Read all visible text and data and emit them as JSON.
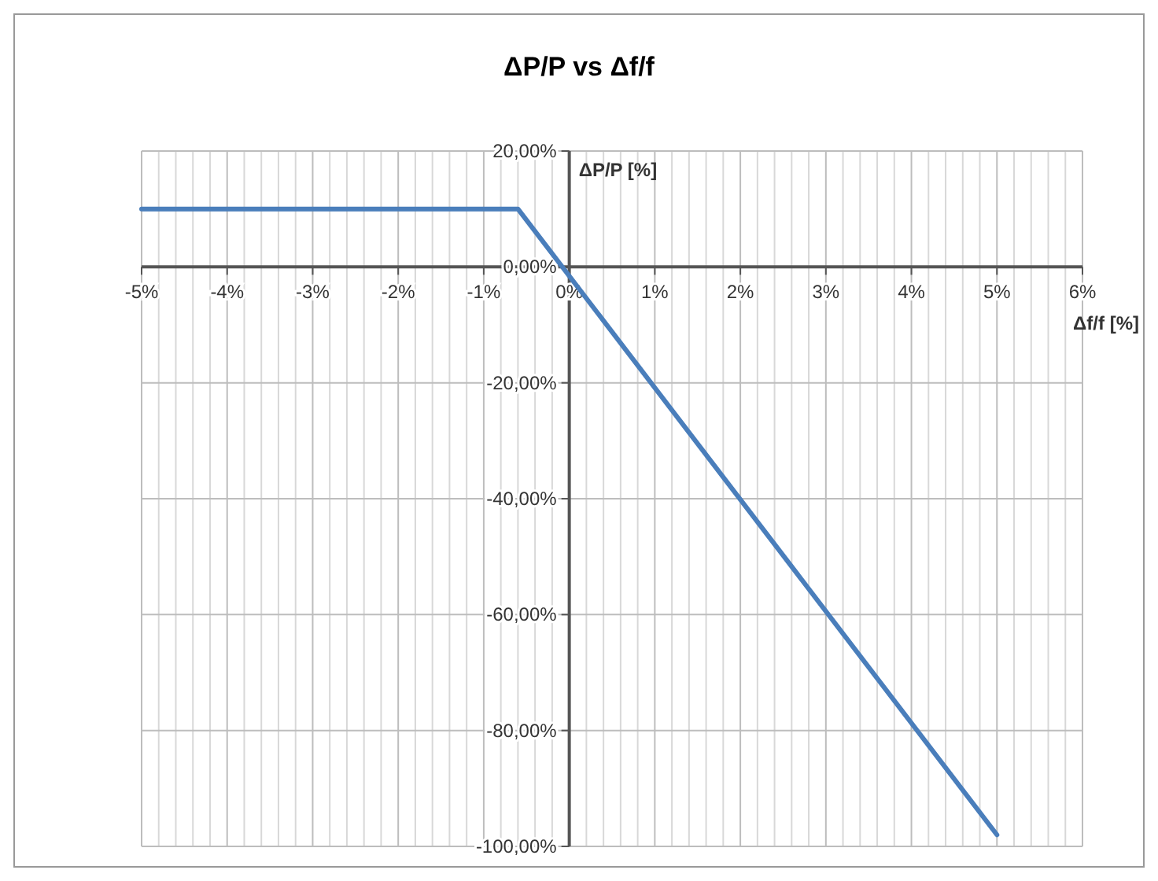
{
  "chart_data": {
    "type": "line",
    "title": "ΔP/P vs Δf/f",
    "xlabel": "Δf/f [%]",
    "ylabel": "ΔP/P [%]",
    "series": [
      {
        "color": "#4a7ebb",
        "x": [
          -5,
          -0.6,
          5
        ],
        "values": [
          10,
          10,
          -98
        ]
      }
    ],
    "xlim": [
      -5,
      6
    ],
    "ylim": [
      -100,
      20
    ],
    "xticks": [
      {
        "value": -5,
        "label": "-5%"
      },
      {
        "value": -4.8,
        "label": null
      },
      {
        "value": -4.6,
        "label": null
      },
      {
        "value": -4.4,
        "label": null
      },
      {
        "value": -4.2,
        "label": null
      },
      {
        "value": -4,
        "label": "-4%"
      },
      {
        "value": -3.8,
        "label": null
      },
      {
        "value": -3.6,
        "label": null
      },
      {
        "value": -3.4,
        "label": null
      },
      {
        "value": -3.2,
        "label": null
      },
      {
        "value": -3,
        "label": "-3%"
      },
      {
        "value": -2.8,
        "label": null
      },
      {
        "value": -2.6,
        "label": null
      },
      {
        "value": -2.4,
        "label": null
      },
      {
        "value": -2.2,
        "label": null
      },
      {
        "value": -2,
        "label": "-2%"
      },
      {
        "value": -1.8,
        "label": null
      },
      {
        "value": -1.6,
        "label": null
      },
      {
        "value": -1.4,
        "label": null
      },
      {
        "value": -1.2,
        "label": null
      },
      {
        "value": -1,
        "label": "-1%"
      },
      {
        "value": -0.8,
        "label": null
      },
      {
        "value": -0.6,
        "label": null
      },
      {
        "value": -0.4,
        "label": null
      },
      {
        "value": -0.2,
        "label": null
      },
      {
        "value": 0,
        "label": "0%"
      },
      {
        "value": 0.2,
        "label": null
      },
      {
        "value": 0.4,
        "label": null
      },
      {
        "value": 0.6,
        "label": null
      },
      {
        "value": 0.8,
        "label": null
      },
      {
        "value": 1,
        "label": "1%"
      },
      {
        "value": 1.2,
        "label": null
      },
      {
        "value": 1.4,
        "label": null
      },
      {
        "value": 1.6,
        "label": null
      },
      {
        "value": 1.8,
        "label": null
      },
      {
        "value": 2,
        "label": "2%"
      },
      {
        "value": 2.2,
        "label": null
      },
      {
        "value": 2.4,
        "label": null
      },
      {
        "value": 2.6,
        "label": null
      },
      {
        "value": 2.8,
        "label": null
      },
      {
        "value": 3,
        "label": "3%"
      },
      {
        "value": 3.2,
        "label": null
      },
      {
        "value": 3.4,
        "label": null
      },
      {
        "value": 3.6,
        "label": null
      },
      {
        "value": 3.8,
        "label": null
      },
      {
        "value": 4,
        "label": "4%"
      },
      {
        "value": 4.2,
        "label": null
      },
      {
        "value": 4.4,
        "label": null
      },
      {
        "value": 4.6,
        "label": null
      },
      {
        "value": 4.8,
        "label": null
      },
      {
        "value": 5,
        "label": "5%"
      },
      {
        "value": 5.2,
        "label": null
      },
      {
        "value": 5.4,
        "label": null
      },
      {
        "value": 5.6,
        "label": null
      },
      {
        "value": 5.8,
        "label": null
      },
      {
        "value": 6,
        "label": "6%"
      }
    ],
    "yticks": [
      {
        "value": -100,
        "label": "-100,00%"
      },
      {
        "value": -80,
        "label": "-80,00%"
      },
      {
        "value": -60,
        "label": "-60,00%"
      },
      {
        "value": -40,
        "label": "-40,00%"
      },
      {
        "value": -20,
        "label": "-20,00%"
      },
      {
        "value": 0,
        "label": "0,00%"
      },
      {
        "value": 20,
        "label": "20,00%"
      }
    ],
    "grid": true,
    "marker": "none",
    "line_style": "solid"
  }
}
